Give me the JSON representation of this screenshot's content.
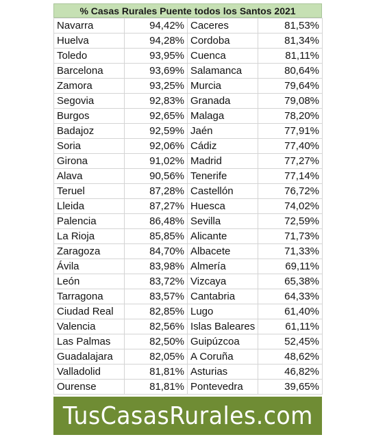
{
  "sheet": {
    "title": "% Casas Rurales Puente todos los Santos 2021",
    "rows": [
      {
        "left_name": "Navarra",
        "left_value": "94,42%",
        "right_name": "Caceres",
        "right_value": "81,53%"
      },
      {
        "left_name": "Huelva",
        "left_value": "94,28%",
        "right_name": "Cordoba",
        "right_value": "81,34%"
      },
      {
        "left_name": "Toledo",
        "left_value": "93,95%",
        "right_name": "Cuenca",
        "right_value": "81,11%"
      },
      {
        "left_name": "Barcelona",
        "left_value": "93,69%",
        "right_name": "Salamanca",
        "right_value": "80,64%"
      },
      {
        "left_name": "Zamora",
        "left_value": "93,25%",
        "right_name": "Murcia",
        "right_value": "79,64%"
      },
      {
        "left_name": "Segovia",
        "left_value": "92,83%",
        "right_name": "Granada",
        "right_value": "79,08%"
      },
      {
        "left_name": "Burgos",
        "left_value": "92,65%",
        "right_name": "Malaga",
        "right_value": "78,20%"
      },
      {
        "left_name": "Badajoz",
        "left_value": "92,59%",
        "right_name": "Jaén",
        "right_value": "77,91%"
      },
      {
        "left_name": "Soria",
        "left_value": "92,06%",
        "right_name": "Cádiz",
        "right_value": "77,40%"
      },
      {
        "left_name": "Girona",
        "left_value": "91,02%",
        "right_name": "Madrid",
        "right_value": "77,27%"
      },
      {
        "left_name": "Alava",
        "left_value": "90,56%",
        "right_name": "Tenerife",
        "right_value": "77,14%"
      },
      {
        "left_name": "Teruel",
        "left_value": "87,28%",
        "right_name": "Castellón",
        "right_value": "76,72%"
      },
      {
        "left_name": "Lleida",
        "left_value": "87,27%",
        "right_name": "Huesca",
        "right_value": "74,02%"
      },
      {
        "left_name": "Palencia",
        "left_value": "86,48%",
        "right_name": "Sevilla",
        "right_value": "72,59%"
      },
      {
        "left_name": "La Rioja",
        "left_value": "85,85%",
        "right_name": "Alicante",
        "right_value": "71,73%"
      },
      {
        "left_name": "Zaragoza",
        "left_value": "84,70%",
        "right_name": "Albacete",
        "right_value": "71,33%"
      },
      {
        "left_name": "Ávila",
        "left_value": "83,98%",
        "right_name": "Almería",
        "right_value": "69,11%"
      },
      {
        "left_name": "León",
        "left_value": "83,72%",
        "right_name": "Vizcaya",
        "right_value": "65,38%"
      },
      {
        "left_name": "Tarragona",
        "left_value": "83,57%",
        "right_name": "Cantabria",
        "right_value": "64,33%"
      },
      {
        "left_name": "Ciudad Real",
        "left_value": "82,85%",
        "right_name": "Lugo",
        "right_value": "61,40%"
      },
      {
        "left_name": "Valencia",
        "left_value": "82,56%",
        "right_name": "Islas Baleares",
        "right_value": "61,11%"
      },
      {
        "left_name": "Las Palmas",
        "left_value": "82,50%",
        "right_name": "Guipúzcoa",
        "right_value": "52,45%"
      },
      {
        "left_name": "Guadalajara",
        "left_value": "82,05%",
        "right_name": "A Coruña",
        "right_value": "48,62%"
      },
      {
        "left_name": "Valladolid",
        "left_value": "81,81%",
        "right_name": "Asturias",
        "right_value": "46,82%"
      },
      {
        "left_name": "Ourense",
        "left_value": "81,81%",
        "right_name": "Pontevedra",
        "right_value": "39,65%"
      }
    ]
  },
  "banner": {
    "text": "TusCasasRurales.com"
  },
  "colors": {
    "title_background": "#c6e0b4",
    "banner_background": "#6f8c34",
    "banner_text": "#ffffff"
  }
}
